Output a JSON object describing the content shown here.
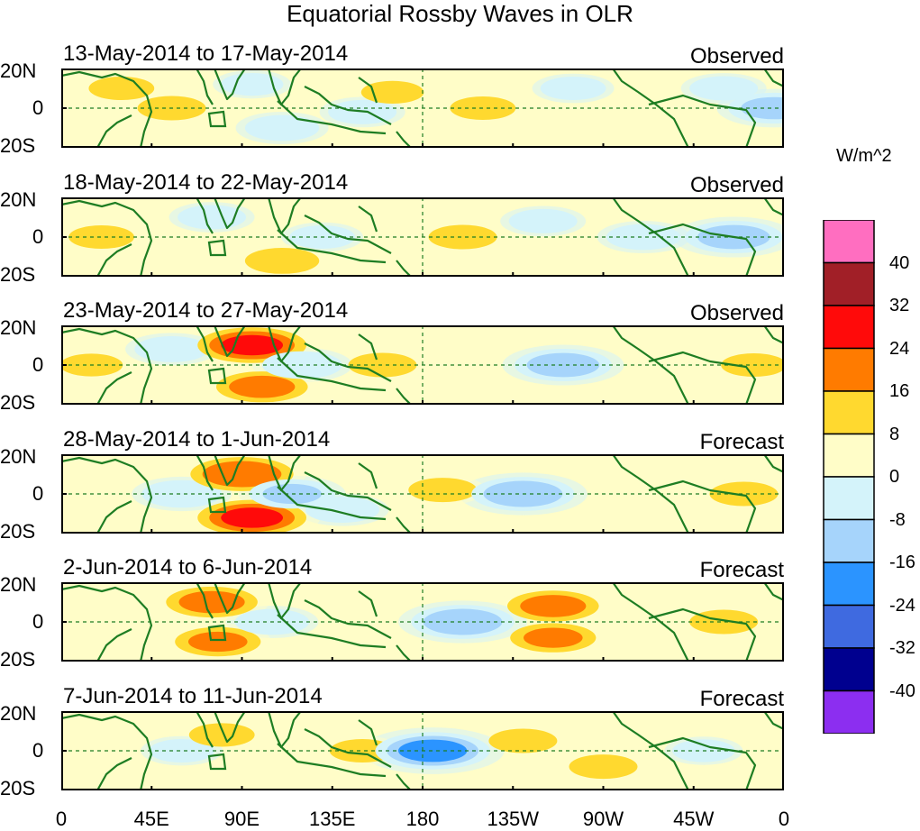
{
  "chart_data": {
    "type": "heatmap",
    "title": "Equatorial Rossby Waves in OLR",
    "units": "W/m^2",
    "lat_ticks": [
      "20N",
      "0",
      "20S"
    ],
    "lon_ticks": [
      "0",
      "45E",
      "90E",
      "135E",
      "180",
      "135W",
      "90W",
      "45W",
      "0"
    ],
    "lon_range": [
      0,
      360
    ],
    "lat_range": [
      -20,
      20
    ],
    "colorbar": {
      "levels": [
        40,
        32,
        24,
        16,
        8,
        0,
        -8,
        -16,
        -24,
        -32,
        -40
      ],
      "colors": [
        "#ff6ec0",
        "#a11f27",
        "#ff0a0a",
        "#ff7b00",
        "#ffd92f",
        "#fffdc8",
        "#d4f3fa",
        "#a6d4fb",
        "#2b94ff",
        "#3f6ae0",
        "#00008f",
        "#8c2ef0"
      ]
    },
    "panels": [
      {
        "dates": "13-May-2014 to 17-May-2014",
        "kind": "Observed",
        "features": [
          {
            "lon": 55,
            "lat": 0,
            "value": 10
          },
          {
            "lon": 30,
            "lat": 10,
            "value": 9
          },
          {
            "lon": 110,
            "lat": -10,
            "value": -12
          },
          {
            "lon": 95,
            "lat": 12,
            "value": -8
          },
          {
            "lon": 150,
            "lat": -2,
            "value": -10
          },
          {
            "lon": 165,
            "lat": 8,
            "value": 8
          },
          {
            "lon": 210,
            "lat": 0,
            "value": 9
          },
          {
            "lon": 255,
            "lat": 10,
            "value": -9
          },
          {
            "lon": 330,
            "lat": 10,
            "value": -10
          },
          {
            "lon": 355,
            "lat": 0,
            "value": -18
          }
        ]
      },
      {
        "dates": "18-May-2014 to 22-May-2014",
        "kind": "Observed",
        "features": [
          {
            "lon": 20,
            "lat": 0,
            "value": 9
          },
          {
            "lon": 75,
            "lat": 10,
            "value": -10
          },
          {
            "lon": 110,
            "lat": -12,
            "value": 12
          },
          {
            "lon": 130,
            "lat": 0,
            "value": -9
          },
          {
            "lon": 200,
            "lat": 0,
            "value": 10
          },
          {
            "lon": 240,
            "lat": 8,
            "value": -10
          },
          {
            "lon": 290,
            "lat": 0,
            "value": -12
          },
          {
            "lon": 335,
            "lat": 0,
            "value": -20
          }
        ]
      },
      {
        "dates": "23-May-2014 to 27-May-2014",
        "kind": "Observed",
        "features": [
          {
            "lon": 15,
            "lat": 0,
            "value": 8
          },
          {
            "lon": 55,
            "lat": 8,
            "value": -12
          },
          {
            "lon": 95,
            "lat": 10,
            "value": 24
          },
          {
            "lon": 100,
            "lat": -11,
            "value": 18
          },
          {
            "lon": 120,
            "lat": 0,
            "value": -14
          },
          {
            "lon": 160,
            "lat": 0,
            "value": 10
          },
          {
            "lon": 250,
            "lat": 0,
            "value": -20
          },
          {
            "lon": 345,
            "lat": 0,
            "value": 9
          }
        ]
      },
      {
        "dates": "28-May-2014 to 1-Jun-2014",
        "kind": "Forecast",
        "features": [
          {
            "lon": 60,
            "lat": 0,
            "value": -14
          },
          {
            "lon": 90,
            "lat": 10,
            "value": 22
          },
          {
            "lon": 95,
            "lat": -12,
            "value": 24
          },
          {
            "lon": 115,
            "lat": 0,
            "value": -16
          },
          {
            "lon": 140,
            "lat": -8,
            "value": -12
          },
          {
            "lon": 190,
            "lat": 2,
            "value": 10
          },
          {
            "lon": 230,
            "lat": 0,
            "value": -22
          },
          {
            "lon": 340,
            "lat": 0,
            "value": 10
          }
        ]
      },
      {
        "dates": "2-Jun-2014 to 6-Jun-2014",
        "kind": "Forecast",
        "features": [
          {
            "lon": 75,
            "lat": 10,
            "value": 18
          },
          {
            "lon": 78,
            "lat": -10,
            "value": 16
          },
          {
            "lon": 105,
            "lat": 0,
            "value": -12
          },
          {
            "lon": 200,
            "lat": 0,
            "value": -22
          },
          {
            "lon": 245,
            "lat": 8,
            "value": 18
          },
          {
            "lon": 245,
            "lat": -8,
            "value": 16
          },
          {
            "lon": 330,
            "lat": 0,
            "value": 10
          }
        ]
      },
      {
        "dates": "7-Jun-2014 to 11-Jun-2014",
        "kind": "Forecast",
        "features": [
          {
            "lon": 60,
            "lat": 0,
            "value": -9
          },
          {
            "lon": 80,
            "lat": 8,
            "value": 9
          },
          {
            "lon": 150,
            "lat": 0,
            "value": 9
          },
          {
            "lon": 185,
            "lat": 0,
            "value": -26
          },
          {
            "lon": 230,
            "lat": 5,
            "value": 10
          },
          {
            "lon": 270,
            "lat": -8,
            "value": 10
          },
          {
            "lon": 320,
            "lat": 0,
            "value": -8
          }
        ]
      }
    ]
  }
}
